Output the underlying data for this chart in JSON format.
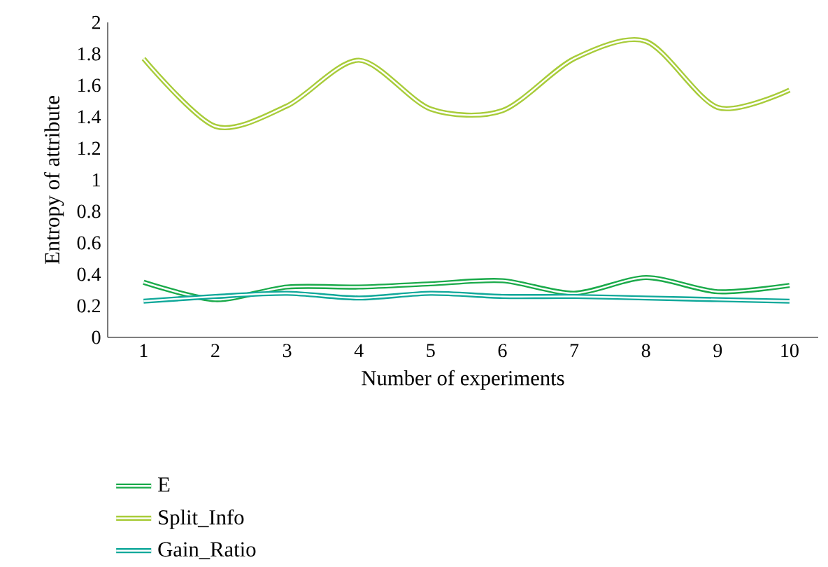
{
  "chart_data": {
    "type": "line",
    "xlabel": "Number of experiments",
    "ylabel": "Entropy of attribute",
    "categories": [
      "1",
      "2",
      "3",
      "4",
      "5",
      "6",
      "7",
      "8",
      "9",
      "10"
    ],
    "ylim": [
      0,
      2
    ],
    "yticks": [
      0,
      0.2,
      0.4,
      0.6,
      0.8,
      1,
      1.2,
      1.4,
      1.6,
      1.8,
      2
    ],
    "legend": "bottom",
    "grid": false,
    "marker": "none",
    "line_style": "solid",
    "series": [
      {
        "name": "E",
        "color": "#1aaa4a",
        "values": [
          0.35,
          0.24,
          0.32,
          0.32,
          0.34,
          0.36,
          0.28,
          0.38,
          0.29,
          0.33
        ]
      },
      {
        "name": "Split_Info",
        "color": "#a8cc3a",
        "values": [
          1.77,
          1.34,
          1.47,
          1.76,
          1.45,
          1.44,
          1.77,
          1.88,
          1.46,
          1.57
        ]
      },
      {
        "name": "Gain_Ratio",
        "color": "#10a89a",
        "values": [
          0.23,
          0.26,
          0.28,
          0.25,
          0.28,
          0.26,
          0.26,
          0.25,
          0.24,
          0.23
        ]
      }
    ]
  }
}
